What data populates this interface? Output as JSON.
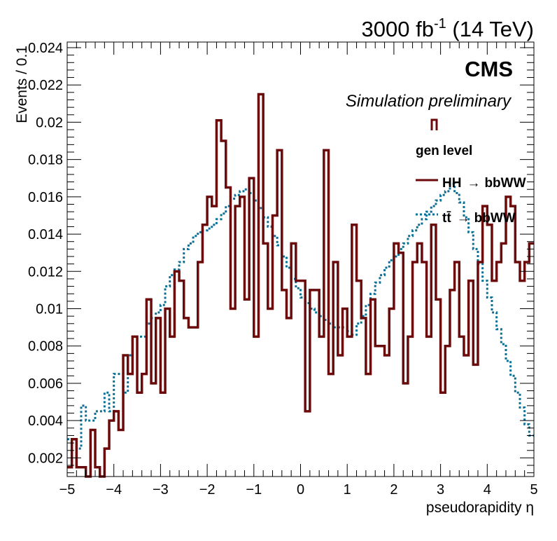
{
  "chart_data": {
    "type": "histogram",
    "lumi_label": "3000 fb-1 (14 TeV)",
    "lumi_parts": {
      "before": "3000 fb",
      "sup": "-1",
      "after": " (14 TeV)"
    },
    "experiment_label": "CMS",
    "subtitle": "Simulation preliminary",
    "legend_header": "gen level",
    "xlabel": "pseudorapidity η",
    "ylabel": "Events / 0.1",
    "xlim": [
      -5,
      5
    ],
    "ylim": [
      0.001,
      0.0243
    ],
    "xticks": [
      "−5",
      "−4",
      "−3",
      "−2",
      "−1",
      "0",
      "1",
      "2",
      "3",
      "4",
      "5"
    ],
    "yticks": [
      "0.002",
      "0.004",
      "0.006",
      "0.008",
      "0.01",
      "0.012",
      "0.014",
      "0.016",
      "0.018",
      "0.02",
      "0.022",
      "0.024"
    ],
    "bin_edges_range": [
      -5,
      5
    ],
    "bin_width": 0.1,
    "series": [
      {
        "name": "HH → bbWW",
        "legend_main": "HH",
        "legend_arrow": "→",
        "legend_tail": "bbWW",
        "color": "#6b0a0a",
        "style": "solid",
        "values": [
          0.0015,
          0.003,
          0.0015,
          0.0015,
          0.0005,
          0.0035,
          0.0015,
          0.001,
          0.0025,
          0.004,
          0.0045,
          0.0035,
          0.0075,
          0.0065,
          0.0085,
          0.0055,
          0.0065,
          0.0105,
          0.006,
          0.0095,
          0.0055,
          0.01,
          0.0085,
          0.012,
          0.0115,
          0.0095,
          0.009,
          0.009,
          0.0125,
          0.0145,
          0.016,
          0.0155,
          0.0201,
          0.019,
          0.0165,
          0.01,
          0.0155,
          0.016,
          0.0105,
          0.017,
          0.0085,
          0.0215,
          0.0135,
          0.01,
          0.015,
          0.0185,
          0.011,
          0.0095,
          0.0135,
          0.0115,
          0.0115,
          0.0045,
          0.011,
          0.011,
          0.0085,
          0.0185,
          0.0065,
          0.0125,
          0.0075,
          0.01,
          0.0085,
          0.0145,
          0.0115,
          0.0095,
          0.0065,
          0.0105,
          0.008,
          0.008,
          0.0075,
          0.01,
          0.0135,
          0.013,
          0.006,
          0.0085,
          0.0125,
          0.0135,
          0.0125,
          0.0085,
          0.0145,
          0.0105,
          0.0055,
          0.008,
          0.011,
          0.0125,
          0.0085,
          0.0075,
          0.0115,
          0.007,
          0.0125,
          0.0155,
          0.0145,
          0.0115,
          0.0125,
          0.0135,
          0.016,
          0.0155,
          0.0125,
          0.0115,
          0.0125,
          0.0135
        ]
      },
      {
        "name": "tt̄ → bbWW",
        "legend_main": "tt̄",
        "legend_arrow": "→",
        "legend_tail": "bbWW",
        "color": "#0a6f96",
        "style": "dotted",
        "values": [
          0.003,
          0.003,
          0.0025,
          0.0048,
          0.004,
          0.004,
          0.0045,
          0.0045,
          0.0055,
          0.0045,
          0.0065,
          0.0065,
          0.0055,
          0.0075,
          0.0085,
          0.0085,
          0.0085,
          0.0092,
          0.0095,
          0.0098,
          0.0102,
          0.0112,
          0.0118,
          0.0121,
          0.0125,
          0.0132,
          0.0135,
          0.0139,
          0.0141,
          0.0142,
          0.0143,
          0.0145,
          0.0148,
          0.0151,
          0.0155,
          0.0159,
          0.0161,
          0.0163,
          0.0164,
          0.0162,
          0.0158,
          0.0154,
          0.0149,
          0.0144,
          0.0139,
          0.0134,
          0.0128,
          0.0122,
          0.0116,
          0.0111,
          0.0106,
          0.0103,
          0.01,
          0.0098,
          0.0096,
          0.0094,
          0.0092,
          0.009,
          0.009,
          0.009,
          0.0088,
          0.0086,
          0.0092,
          0.0096,
          0.0102,
          0.0108,
          0.0114,
          0.0118,
          0.0122,
          0.0126,
          0.0128,
          0.0132,
          0.0135,
          0.0139,
          0.0142,
          0.0145,
          0.0148,
          0.0152,
          0.0155,
          0.0158,
          0.0161,
          0.0163,
          0.0167,
          0.0162,
          0.0157,
          0.0149,
          0.0141,
          0.0132,
          0.0124,
          0.0115,
          0.0106,
          0.0098,
          0.0089,
          0.0081,
          0.0072,
          0.0064,
          0.0055,
          0.0047,
          0.0038,
          0.0032
        ]
      }
    ]
  }
}
